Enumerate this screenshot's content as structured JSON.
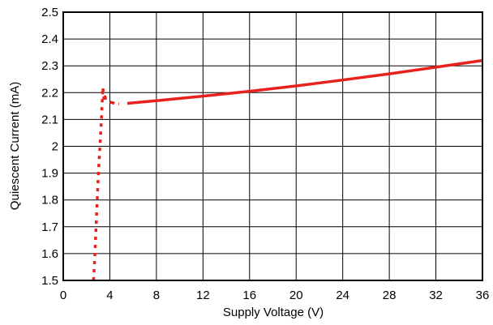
{
  "chart_data": {
    "type": "line",
    "xlabel": "Supply Voltage (V)",
    "ylabel": "Quiescent Current (mA)",
    "xlim": [
      0,
      36
    ],
    "ylim": [
      1.5,
      2.5
    ],
    "x_ticks": [
      0,
      4,
      8,
      12,
      16,
      20,
      24,
      28,
      32,
      36
    ],
    "y_ticks": [
      1.5,
      1.6,
      1.7,
      1.8,
      1.9,
      2,
      2.1,
      2.2,
      2.3,
      2.4,
      2.5
    ],
    "x_tick_labels": [
      "0",
      "4",
      "8",
      "12",
      "16",
      "20",
      "24",
      "28",
      "32",
      "36"
    ],
    "y_tick_labels": [
      "1.5",
      "1.6",
      "1.7",
      "1.8",
      "1.9",
      "2",
      "2.1",
      "2.2",
      "2.3",
      "2.4",
      "2.5"
    ],
    "grid": true,
    "legend": "none",
    "line_color": "#e8201e",
    "series": [
      {
        "style": "dotted",
        "x": [
          2.6,
          2.7,
          2.8,
          2.9,
          3.0,
          3.1,
          3.2,
          3.3,
          3.35,
          3.4,
          3.5,
          3.6,
          3.7,
          3.8
        ],
        "y": [
          1.5,
          1.58,
          1.68,
          1.78,
          1.88,
          1.96,
          2.04,
          2.12,
          2.17,
          2.22,
          2.17,
          2.185,
          2.16,
          2.16
        ]
      },
      {
        "style": "dashed",
        "x": [
          4.0,
          4.4,
          4.8
        ],
        "y": [
          2.165,
          2.16,
          2.158
        ]
      },
      {
        "style": "solid",
        "x": [
          5.5,
          8,
          12,
          16,
          20,
          24,
          28,
          32,
          36
        ],
        "y": [
          2.16,
          2.17,
          2.187,
          2.205,
          2.225,
          2.247,
          2.27,
          2.295,
          2.32
        ]
      }
    ]
  }
}
